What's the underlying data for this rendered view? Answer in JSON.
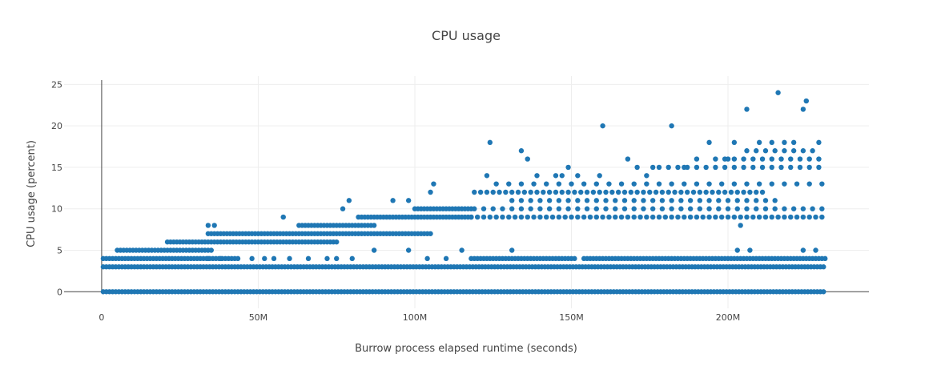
{
  "chart_data": {
    "type": "scatter",
    "title": "CPU usage",
    "xlabel": "Burrow process elapsed runtime (seconds)",
    "ylabel": "CPU usage (percent)",
    "xlim": [
      -12000000,
      245000000
    ],
    "ylim": [
      -2,
      26
    ],
    "x_ticks": [
      0,
      50000000,
      100000000,
      150000000,
      200000000
    ],
    "x_tick_labels": [
      "0",
      "50M",
      "100M",
      "150M",
      "200M"
    ],
    "y_ticks": [
      0,
      5,
      10,
      15,
      20,
      25
    ],
    "y_tick_labels": [
      "0",
      "5",
      "10",
      "15",
      "20",
      "25"
    ],
    "grid": true,
    "legend": false,
    "marker_color": "#1f77b4",
    "series": [
      {
        "bands": [
          {
            "y": 0,
            "x_start": 500000,
            "x_end": 231000000,
            "step": 1000000
          },
          {
            "y": 3,
            "x_start": 500000,
            "x_end": 231000000,
            "step": 1000000
          },
          {
            "y": 4,
            "x_start": 500000,
            "x_end": 44000000,
            "step": 1000000
          },
          {
            "y": 4,
            "x_start": 118000000,
            "x_end": 151000000,
            "step": 1000000
          },
          {
            "y": 4,
            "x_start": 154000000,
            "x_end": 231000000,
            "step": 1000000
          },
          {
            "y": 5,
            "x_start": 5000000,
            "x_end": 35000000,
            "step": 1000000
          },
          {
            "y": 6,
            "x_start": 21000000,
            "x_end": 75000000,
            "step": 1000000
          },
          {
            "y": 7,
            "x_start": 34000000,
            "x_end": 105000000,
            "step": 1000000
          },
          {
            "y": 8,
            "x_start": 63000000,
            "x_end": 87000000,
            "step": 1000000
          },
          {
            "y": 9,
            "x_start": 82000000,
            "x_end": 118000000,
            "step": 1000000
          },
          {
            "y": 10,
            "x_start": 100000000,
            "x_end": 118000000,
            "step": 1000000
          },
          {
            "y": 9,
            "x_start": 118000000,
            "x_end": 230000000,
            "step": 2000000
          },
          {
            "y": 10,
            "x_start": 119000000,
            "x_end": 230000000,
            "step": 3000000
          },
          {
            "y": 12,
            "x_start": 119000000,
            "x_end": 212000000,
            "step": 2000000
          },
          {
            "y": 13,
            "x_start": 126000000,
            "x_end": 230000000,
            "step": 4000000
          },
          {
            "y": 11,
            "x_start": 131000000,
            "x_end": 215000000,
            "step": 3000000
          },
          {
            "y": 15,
            "x_start": 178000000,
            "x_end": 230000000,
            "step": 3000000
          },
          {
            "y": 16,
            "x_start": 196000000,
            "x_end": 229000000,
            "step": 3000000
          },
          {
            "y": 17,
            "x_start": 206000000,
            "x_end": 229000000,
            "step": 3000000
          }
        ],
        "points": [
          [
            34000000,
            8
          ],
          [
            36000000,
            8
          ],
          [
            77000000,
            10
          ],
          [
            79000000,
            11
          ],
          [
            93000000,
            11
          ],
          [
            105000000,
            12
          ],
          [
            106000000,
            13
          ],
          [
            98000000,
            11
          ],
          [
            123000000,
            14
          ],
          [
            124000000,
            18
          ],
          [
            134000000,
            17
          ],
          [
            136000000,
            16
          ],
          [
            139000000,
            14
          ],
          [
            145000000,
            14
          ],
          [
            147000000,
            14
          ],
          [
            149000000,
            15
          ],
          [
            152000000,
            14
          ],
          [
            159000000,
            14
          ],
          [
            160000000,
            20
          ],
          [
            168000000,
            16
          ],
          [
            171000000,
            15
          ],
          [
            174000000,
            14
          ],
          [
            176000000,
            15
          ],
          [
            182000000,
            20
          ],
          [
            186000000,
            15
          ],
          [
            190000000,
            16
          ],
          [
            194000000,
            18
          ],
          [
            200000000,
            16
          ],
          [
            202000000,
            18
          ],
          [
            204000000,
            8
          ],
          [
            206000000,
            22
          ],
          [
            210000000,
            18
          ],
          [
            214000000,
            18
          ],
          [
            216000000,
            24
          ],
          [
            218000000,
            18
          ],
          [
            221000000,
            18
          ],
          [
            224000000,
            22
          ],
          [
            225000000,
            23
          ],
          [
            229000000,
            18
          ],
          [
            203000000,
            5
          ],
          [
            207000000,
            5
          ],
          [
            224000000,
            5
          ],
          [
            228000000,
            5
          ],
          [
            131000000,
            5
          ],
          [
            58000000,
            9
          ],
          [
            52000000,
            4
          ],
          [
            55000000,
            4
          ],
          [
            60000000,
            4
          ],
          [
            66000000,
            4
          ],
          [
            72000000,
            4
          ],
          [
            75000000,
            4
          ],
          [
            80000000,
            4
          ],
          [
            34000000,
            4
          ],
          [
            38000000,
            4
          ],
          [
            48000000,
            4
          ],
          [
            87000000,
            5
          ],
          [
            98000000,
            5
          ],
          [
            104000000,
            4
          ],
          [
            110000000,
            4
          ],
          [
            115000000,
            5
          ]
        ]
      }
    ]
  }
}
